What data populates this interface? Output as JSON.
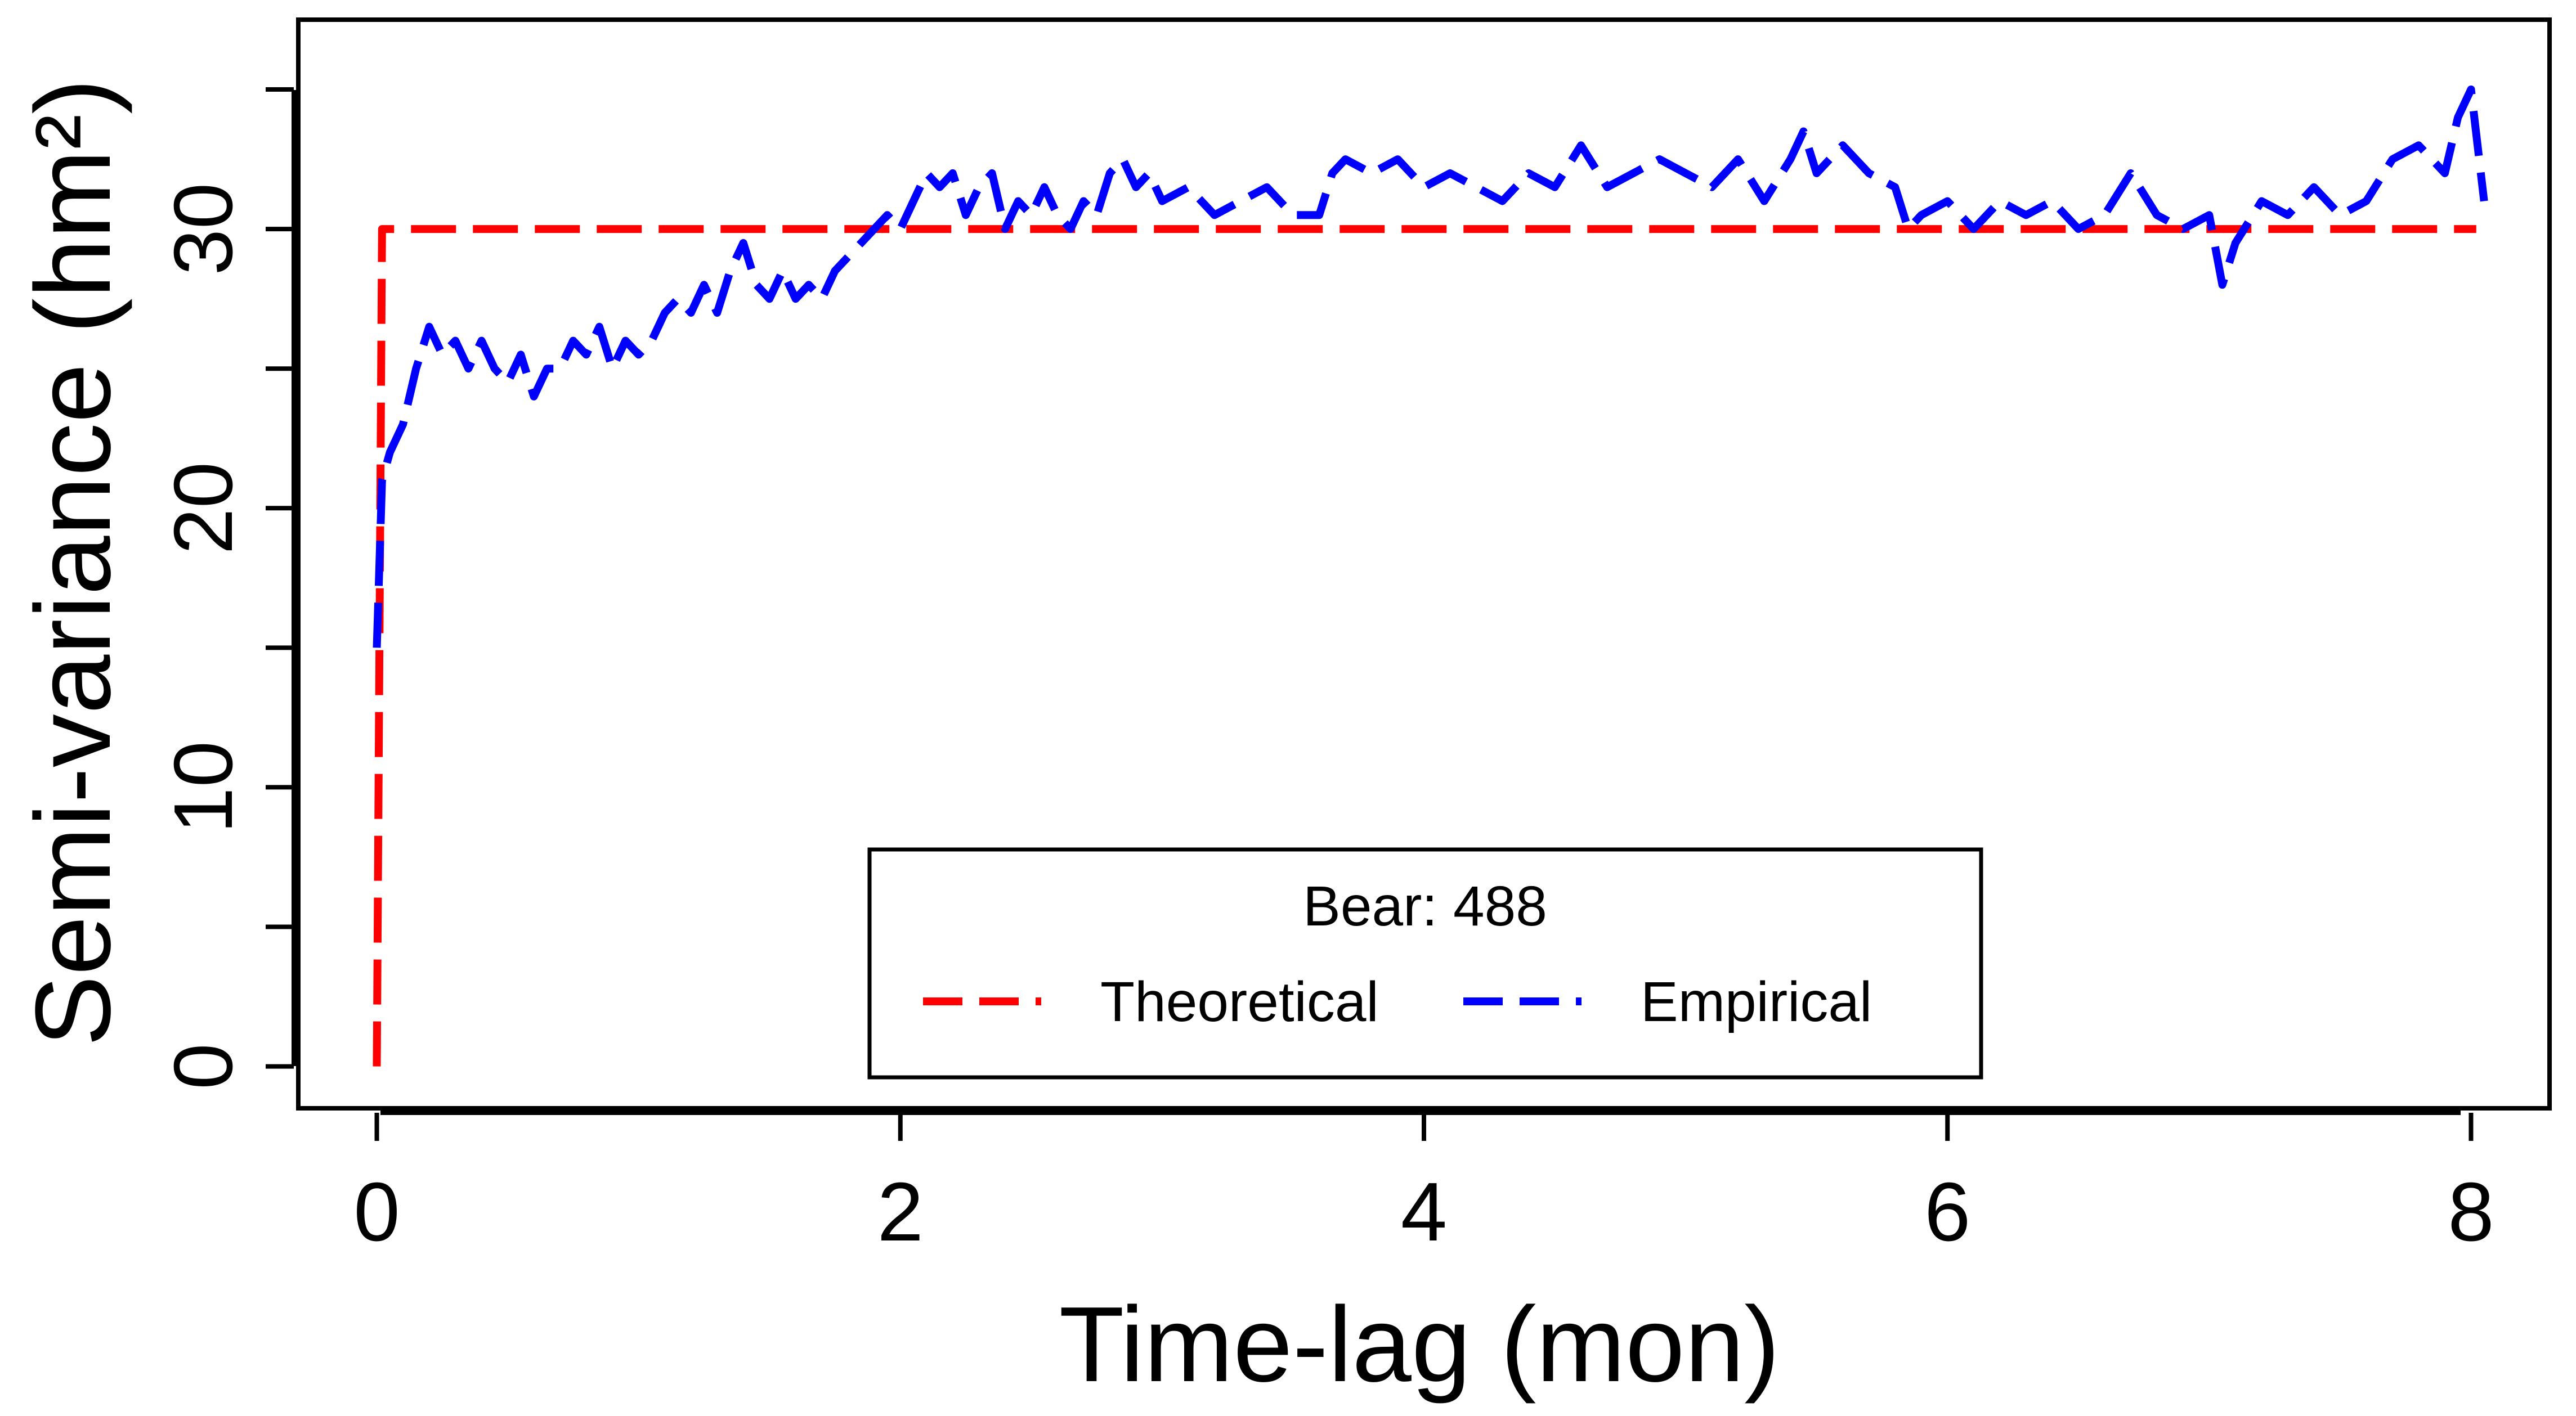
{
  "chart_data": {
    "type": "line",
    "title": "",
    "xlabel": "Time-lag (mon)",
    "ylabel": "Semi-variance (hm²)",
    "xlim": [
      -0.3,
      8.3
    ],
    "ylim": [
      -1.5,
      37.5
    ],
    "x_ticks": [
      0,
      2,
      4,
      6,
      8
    ],
    "x_tick_labels": [
      "0",
      "2",
      "4",
      "6",
      "8"
    ],
    "y_ticks": [
      0,
      10,
      20,
      30
    ],
    "y_tick_labels": [
      "0",
      "10",
      "20",
      "30"
    ],
    "y_minor_ticks": [
      5,
      15,
      25,
      35
    ],
    "grid": false,
    "legend": {
      "title": "Bear: 488",
      "placement": "bottom-center",
      "entries": [
        "Theoretical",
        "Empirical"
      ]
    },
    "series": [
      {
        "name": "Theoretical",
        "color": "#ff0000",
        "style": "dashed",
        "x": [
          0,
          0.02,
          8.02
        ],
        "y": [
          0,
          30,
          30
        ]
      },
      {
        "name": "Empirical",
        "color": "#0000ff",
        "style": "dashed",
        "x": [
          0.0,
          0.02,
          0.05,
          0.1,
          0.15,
          0.2,
          0.25,
          0.3,
          0.35,
          0.4,
          0.45,
          0.5,
          0.55,
          0.6,
          0.65,
          0.7,
          0.75,
          0.8,
          0.85,
          0.9,
          0.95,
          1.0,
          1.05,
          1.1,
          1.15,
          1.2,
          1.25,
          1.3,
          1.35,
          1.4,
          1.45,
          1.5,
          1.55,
          1.6,
          1.65,
          1.7,
          1.75,
          1.8,
          1.85,
          1.9,
          1.95,
          2.0,
          2.05,
          2.1,
          2.15,
          2.2,
          2.25,
          2.3,
          2.35,
          2.4,
          2.45,
          2.5,
          2.55,
          2.6,
          2.65,
          2.7,
          2.75,
          2.8,
          2.85,
          2.9,
          2.95,
          3.0,
          3.1,
          3.2,
          3.3,
          3.4,
          3.5,
          3.6,
          3.65,
          3.7,
          3.8,
          3.9,
          4.0,
          4.1,
          4.2,
          4.3,
          4.4,
          4.5,
          4.6,
          4.7,
          4.8,
          4.9,
          5.0,
          5.1,
          5.2,
          5.3,
          5.4,
          5.45,
          5.5,
          5.6,
          5.7,
          5.8,
          5.85,
          5.9,
          6.0,
          6.1,
          6.2,
          6.3,
          6.4,
          6.5,
          6.6,
          6.7,
          6.8,
          6.9,
          7.0,
          7.05,
          7.1,
          7.2,
          7.3,
          7.4,
          7.5,
          7.6,
          7.7,
          7.8,
          7.9,
          7.95,
          8.0,
          8.05
        ],
        "y": [
          15,
          21,
          22,
          23,
          25,
          26.5,
          25.5,
          26,
          25,
          26,
          25,
          24.5,
          25.5,
          24,
          25,
          25,
          26,
          25.5,
          26.5,
          25,
          26,
          25.5,
          26,
          27,
          27.5,
          27,
          28,
          27,
          28.5,
          29.5,
          28,
          27.5,
          28.5,
          27.5,
          28,
          27.5,
          28.5,
          29,
          29.5,
          30,
          30.5,
          30,
          31,
          32,
          31.5,
          32,
          30.5,
          31.5,
          32,
          30,
          31,
          30.5,
          31.5,
          30.5,
          30,
          31,
          30.5,
          32,
          32.5,
          31.5,
          32,
          31,
          31.5,
          30.5,
          31,
          31.5,
          30.5,
          30.5,
          32,
          32.5,
          32,
          32.5,
          31.5,
          32,
          31.5,
          31,
          32,
          31.5,
          33,
          31.5,
          32,
          32.5,
          32,
          31.5,
          32.5,
          31,
          32.5,
          33.5,
          32,
          33,
          32,
          31.5,
          30,
          30.5,
          31,
          30,
          31,
          30.5,
          31,
          30,
          30.5,
          32,
          30.5,
          30,
          30.5,
          28,
          29.5,
          31,
          30.5,
          31.5,
          30.5,
          31,
          32.5,
          33,
          32,
          34,
          35,
          31
        ]
      }
    ]
  }
}
